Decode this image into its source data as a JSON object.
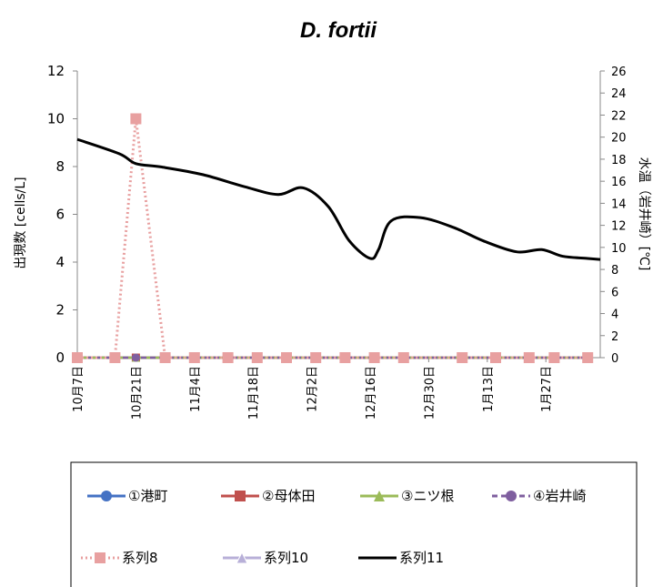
{
  "chart_data": {
    "type": "line",
    "title": "D. fortii",
    "ylabel": "出現数 [cells/L]",
    "y2label": "水温（岩井崎）[℃]",
    "ylim": [
      0,
      12
    ],
    "y2lim": [
      0,
      26
    ],
    "yticks": [
      0,
      2,
      4,
      6,
      8,
      10,
      12
    ],
    "y2ticks": [
      0,
      2,
      4,
      6,
      8,
      10,
      12,
      14,
      16,
      18,
      20,
      22,
      24,
      26
    ],
    "xlim": [
      "10月7日",
      "2月9日"
    ],
    "xlim_days": [
      0,
      125
    ],
    "xticks": [
      {
        "label": "10月7日",
        "day": 0
      },
      {
        "label": "10月21日",
        "day": 14
      },
      {
        "label": "11月4日",
        "day": 28
      },
      {
        "label": "11月18日",
        "day": 42
      },
      {
        "label": "12月2日",
        "day": 56
      },
      {
        "label": "12月16日",
        "day": 70
      },
      {
        "label": "12月30日",
        "day": 84
      },
      {
        "label": "1月13日",
        "day": 98
      },
      {
        "label": "1月27日",
        "day": 112
      }
    ],
    "grid": false,
    "legend_position": "bottom",
    "sample_days": [
      0,
      9,
      14,
      21,
      28,
      36,
      43,
      50,
      57,
      64,
      71,
      78,
      92,
      100,
      108,
      114,
      122
    ],
    "series": [
      {
        "name": "①港町",
        "axis": "left",
        "color": "#4472C4",
        "marker": "circle",
        "dash": "solid",
        "values": [
          0,
          0,
          0,
          0,
          0,
          0,
          0,
          0,
          0,
          0,
          0,
          0,
          0,
          0,
          0,
          0,
          0
        ]
      },
      {
        "name": "②母体田",
        "axis": "left",
        "color": "#C0504D",
        "marker": "square",
        "dash": "solid",
        "values": [
          0,
          0,
          0,
          0,
          0,
          0,
          0,
          0,
          0,
          0,
          0,
          0,
          0,
          0,
          0,
          0,
          0
        ]
      },
      {
        "name": "③ニツ根",
        "axis": "left",
        "color": "#9BBB59",
        "marker": "triangle",
        "dash": "solid",
        "values": [
          0,
          0,
          0,
          0,
          0,
          0,
          0,
          0,
          0,
          0,
          0,
          0,
          0,
          0,
          0,
          0,
          0
        ]
      },
      {
        "name": "④岩井崎",
        "axis": "left",
        "color": "#7F5F9F",
        "marker": "circle",
        "dash": "dash",
        "values": [
          0,
          0,
          0,
          0,
          0,
          0,
          0,
          0,
          0,
          0,
          0,
          0,
          0,
          0,
          0,
          0,
          0
        ]
      },
      {
        "name": "系列8",
        "axis": "left",
        "color": "#E8A0A0",
        "marker": "square",
        "dash": "dot",
        "values": [
          0,
          0,
          10,
          0,
          0,
          0,
          0,
          0,
          0,
          0,
          0,
          0,
          0,
          0,
          0,
          0,
          0
        ]
      },
      {
        "name": "系列10",
        "axis": "left",
        "color": "#B8B0D8",
        "marker": "triangle-open",
        "dash": "solid",
        "values": [
          0,
          0,
          0,
          0,
          0,
          0,
          0,
          0,
          0,
          0,
          0,
          0,
          0,
          0,
          0,
          0,
          0
        ]
      },
      {
        "name": "系列11",
        "axis": "right",
        "color": "#000000",
        "marker": "none",
        "dash": "solid",
        "x": [
          0,
          10,
          14,
          20,
          30,
          40,
          48,
          54,
          60,
          65,
          70,
          72,
          75,
          82,
          90,
          97,
          105,
          111,
          116,
          122,
          125
        ],
        "values": [
          19.8,
          18.5,
          17.6,
          17.3,
          16.6,
          15.5,
          14.8,
          15.4,
          13.7,
          10.6,
          9.0,
          9.8,
          12.4,
          12.7,
          11.8,
          10.6,
          9.6,
          9.8,
          9.2,
          9.0,
          8.9
        ]
      }
    ]
  }
}
